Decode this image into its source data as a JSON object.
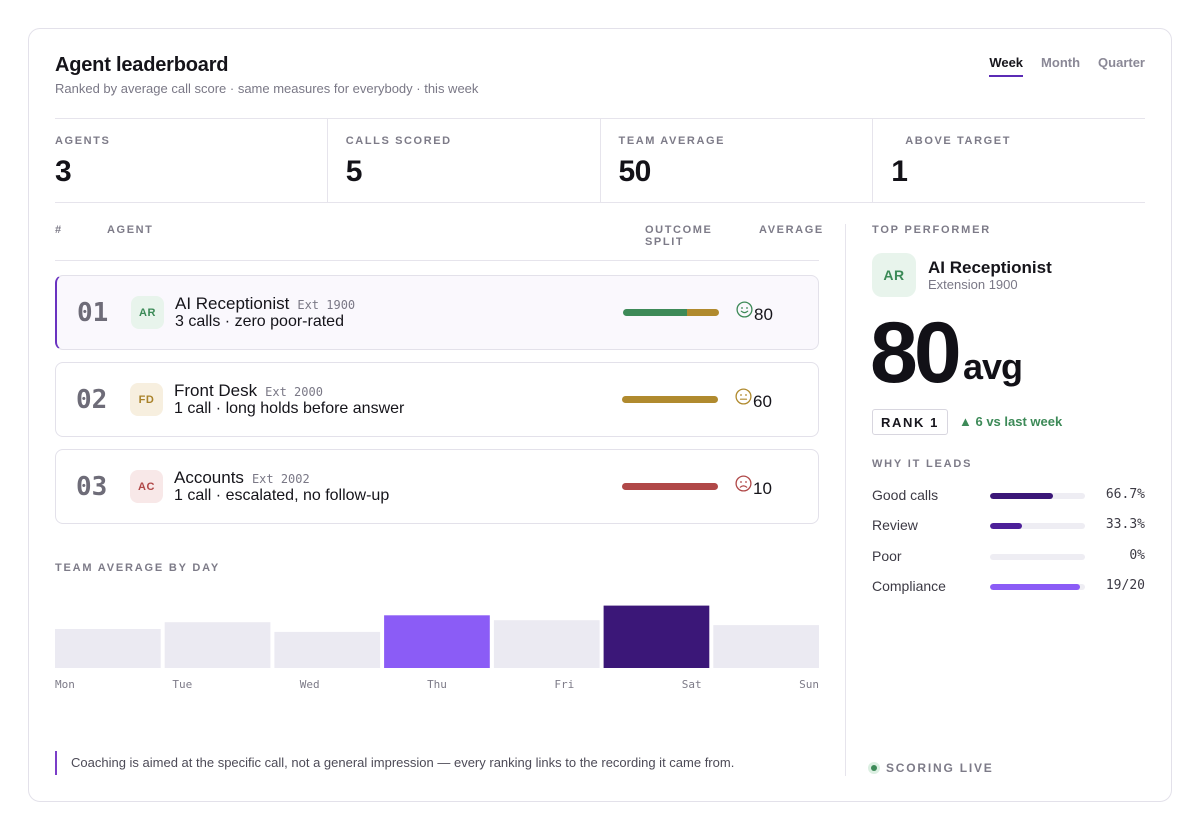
{
  "header": {
    "title": "Agent leaderboard",
    "subtitle": "Ranked by average call score · same measures for everybody · this week"
  },
  "tabs": [
    {
      "label": "Week",
      "active": true
    },
    {
      "label": "Month",
      "active": false
    },
    {
      "label": "Quarter",
      "active": false
    }
  ],
  "stats": [
    {
      "label": "AGENTS",
      "value": "3"
    },
    {
      "label": "CALLS SCORED",
      "value": "5"
    },
    {
      "label": "TEAM AVERAGE",
      "value": "50"
    },
    {
      "label": "ABOVE TARGET",
      "value": "1"
    }
  ],
  "table": {
    "headers": {
      "rank": "#",
      "agent": "AGENT",
      "split": "OUTCOME SPLIT",
      "average": "AVERAGE"
    },
    "rows": [
      {
        "rank": "01",
        "initials": "AR",
        "name": "AI Receptionist",
        "ext": "Ext 1900",
        "sub": "3 calls · zero poor-rated",
        "score": "80",
        "mood": "happy",
        "split": [
          {
            "fraction": 0.67,
            "color": "#3d8a58"
          },
          {
            "fraction": 0.33,
            "color": "#b08a2e"
          }
        ],
        "avatar_bg": "#e8f4ec",
        "avatar_fg": "#3b8a57",
        "face_color": "#3d8a58"
      },
      {
        "rank": "02",
        "initials": "FD",
        "name": "Front Desk",
        "ext": "Ext 2000",
        "sub": "1 call · long holds before answer",
        "score": "60",
        "mood": "neutral",
        "split": [
          {
            "fraction": 1.0,
            "color": "#b08a2e"
          }
        ],
        "avatar_bg": "#f7efdf",
        "avatar_fg": "#a98229",
        "face_color": "#b08a2e"
      },
      {
        "rank": "03",
        "initials": "AC",
        "name": "Accounts",
        "ext": "Ext 2002",
        "sub": "1 call · escalated, no follow-up",
        "score": "10",
        "mood": "sad",
        "split": [
          {
            "fraction": 1.0,
            "color": "#b04848"
          }
        ],
        "avatar_bg": "#f8e8e8",
        "avatar_fg": "#b04848",
        "face_color": "#b04848"
      }
    ]
  },
  "team_chart": {
    "label": "TEAM AVERAGE BY DAY"
  },
  "chart_data": {
    "type": "bar",
    "categories": [
      "Mon",
      "Tue",
      "Wed",
      "Thu",
      "Fri",
      "Sat",
      "Sun"
    ],
    "values": [
      40,
      47,
      37,
      54,
      49,
      64,
      44
    ],
    "highlight": {
      "Thu": "#8b5cf6",
      "Sat": "#3b1778"
    },
    "base_color": "#ebeaf2",
    "ylim": [
      0,
      80
    ],
    "title": "TEAM AVERAGE BY DAY",
    "xlabel": "",
    "ylabel": ""
  },
  "coaching_note": "Coaching is aimed at the specific call, not a general impression — every ranking links to the recording it came from.",
  "top_performer": {
    "section_label": "TOP PERFORMER",
    "initials": "AR",
    "name": "AI Receptionist",
    "extension": "Extension 1900",
    "score": "80",
    "unit": "avg",
    "rank_label": "RANK 1",
    "delta": "▲ 6 vs last week",
    "why_label": "WHY IT LEADS",
    "metrics": [
      {
        "label": "Good calls",
        "value": "66.7%",
        "fraction": 0.667,
        "color": "#3b1778"
      },
      {
        "label": "Review",
        "value": "33.3%",
        "fraction": 0.333,
        "color": "#4d2099"
      },
      {
        "label": "Poor",
        "value": "0%",
        "fraction": 0.0,
        "color": "#4d2099"
      },
      {
        "label": "Compliance",
        "value": "19/20",
        "fraction": 0.95,
        "color": "#8b5cf6"
      }
    ]
  },
  "status": {
    "live_label": "SCORING LIVE"
  }
}
